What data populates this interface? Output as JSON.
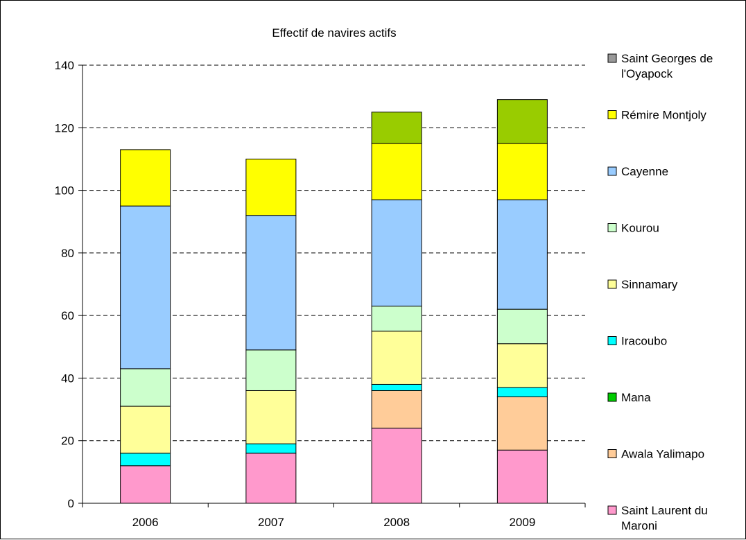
{
  "chart_data": {
    "type": "bar",
    "stacked": true,
    "title": "Effectif de navires actifs",
    "xlabel": "",
    "ylabel": "",
    "categories": [
      "2006",
      "2007",
      "2008",
      "2009"
    ],
    "ylim": [
      0,
      140
    ],
    "yticks": [
      0,
      20,
      40,
      60,
      80,
      100,
      120,
      140
    ],
    "grid": "horizontal-dashed",
    "legend_position": "right",
    "series": [
      {
        "name": "Saint Laurent du Maroni",
        "color": "#ff99cc",
        "values": [
          12,
          16,
          24,
          17
        ]
      },
      {
        "name": "Awala Yalimapo",
        "color": "#ffcc99",
        "values": [
          0,
          0,
          12,
          17
        ]
      },
      {
        "name": "Mana",
        "color": "#00cc00",
        "values": [
          0,
          0,
          0,
          0
        ]
      },
      {
        "name": "Iracoubo",
        "color": "#00ffff",
        "values": [
          4,
          3,
          2,
          3
        ]
      },
      {
        "name": "Sinnamary",
        "color": "#ffff99",
        "values": [
          15,
          17,
          17,
          14
        ]
      },
      {
        "name": "Kourou",
        "color": "#ccffcc",
        "values": [
          12,
          13,
          8,
          11
        ]
      },
      {
        "name": "Cayenne",
        "color": "#99ccff",
        "values": [
          52,
          43,
          34,
          35
        ]
      },
      {
        "name": "Rémire Montjoly",
        "color": "#ffff00",
        "values": [
          18,
          18,
          18,
          18
        ]
      },
      {
        "name": "Saint Georges de l'Oyapock",
        "color": "#999999",
        "values": [
          0,
          0,
          0,
          0
        ]
      },
      {
        "name": "",
        "color": "#99cc00",
        "values": [
          0,
          0,
          10,
          14
        ]
      }
    ],
    "legend": [
      {
        "lines": [
          "Saint Georges de",
          "l'Oyapock"
        ],
        "color": "#999999"
      },
      {
        "lines": [
          "Rémire Montjoly"
        ],
        "color": "#ffff00"
      },
      {
        "lines": [
          "Cayenne"
        ],
        "color": "#99ccff"
      },
      {
        "lines": [
          "Kourou"
        ],
        "color": "#ccffcc"
      },
      {
        "lines": [
          "Sinnamary"
        ],
        "color": "#ffff99"
      },
      {
        "lines": [
          "Iracoubo"
        ],
        "color": "#00ffff"
      },
      {
        "lines": [
          "Mana"
        ],
        "color": "#00cc00"
      },
      {
        "lines": [
          "Awala Yalimapo"
        ],
        "color": "#ffcc99"
      },
      {
        "lines": [
          "Saint Laurent du",
          "Maroni"
        ],
        "color": "#ff99cc"
      }
    ]
  }
}
